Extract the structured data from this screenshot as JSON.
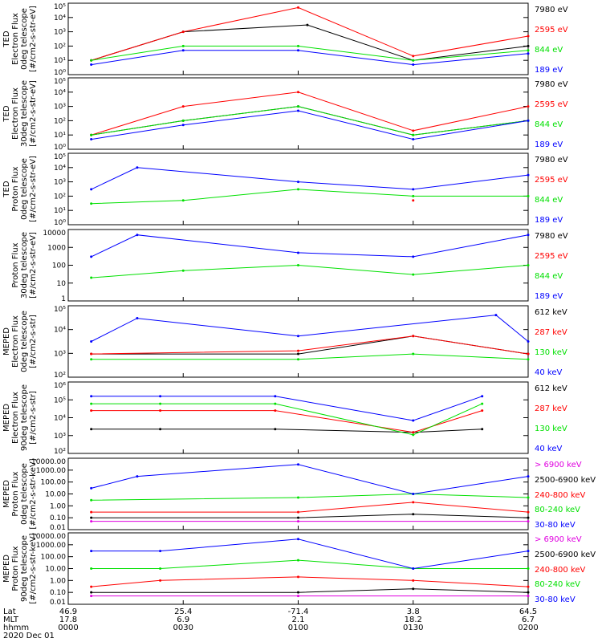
{
  "figure": {
    "date_label": "2020 Dec 01",
    "footer_row_labels": [
      "Lat",
      "MLT",
      "hhmm"
    ],
    "x_ticks": [
      {
        "lat": "46.9",
        "mlt": "17.8",
        "hhmm": "0000"
      },
      {
        "lat": "25.4",
        "mlt": "6.9",
        "hhmm": "0030"
      },
      {
        "lat": "-71.4",
        "mlt": "2.1",
        "hhmm": "0100"
      },
      {
        "lat": "3.8",
        "mlt": "18.2",
        "hhmm": "0130"
      },
      {
        "lat": "64.5",
        "mlt": "6.7",
        "hhmm": "0200"
      }
    ],
    "colors": {
      "black": "#000000",
      "red": "#ff0000",
      "green": "#00e000",
      "blue": "#0000ff",
      "magenta": "#e000e0"
    }
  },
  "chart_data": [
    {
      "type": "line",
      "scale": "log",
      "ylim": [
        1,
        100000
      ],
      "yticks": [
        "10⁰",
        "10¹",
        "10²",
        "10³",
        "10⁴",
        "10⁵"
      ],
      "ylabel": [
        "TED",
        "Electron Flux",
        "0deg telescope",
        "[#/cm2-s-str-eV]"
      ],
      "series": [
        {
          "name": "7980 eV",
          "color": "#000000",
          "x": [
            0.05,
            0.25,
            0.52,
            0.75,
            1.0
          ],
          "y": [
            10,
            1000,
            3000,
            10,
            100
          ]
        },
        {
          "name": "2595 eV",
          "color": "#ff0000",
          "x": [
            0.05,
            0.25,
            0.5,
            0.75,
            1.0
          ],
          "y": [
            10,
            1000,
            50000,
            20,
            500
          ]
        },
        {
          "name": "844 eV",
          "color": "#00e000",
          "x": [
            0.05,
            0.25,
            0.5,
            0.75,
            1.0
          ],
          "y": [
            10,
            100,
            100,
            10,
            50
          ]
        },
        {
          "name": "189 eV",
          "color": "#0000ff",
          "x": [
            0.05,
            0.25,
            0.5,
            0.75,
            1.0
          ],
          "y": [
            5,
            50,
            50,
            5,
            30
          ]
        }
      ]
    },
    {
      "type": "line",
      "scale": "log",
      "ylim": [
        1,
        100000
      ],
      "yticks": [
        "10⁰",
        "10¹",
        "10²",
        "10³",
        "10⁴",
        "10⁵"
      ],
      "ylabel": [
        "TED",
        "Electron Flux",
        "30deg telescope",
        "[#/cm2-s-str-eV]"
      ],
      "series": [
        {
          "name": "7980 eV",
          "color": "#000000",
          "x": [
            0.05,
            0.25,
            0.5,
            0.75,
            1.0
          ],
          "y": [
            10,
            100,
            1000,
            10,
            100
          ]
        },
        {
          "name": "2595 eV",
          "color": "#ff0000",
          "x": [
            0.05,
            0.25,
            0.5,
            0.75,
            1.0
          ],
          "y": [
            10,
            1000,
            10000,
            20,
            1000
          ]
        },
        {
          "name": "844 eV",
          "color": "#00e000",
          "x": [
            0.05,
            0.25,
            0.5,
            0.75,
            1.0
          ],
          "y": [
            10,
            100,
            1000,
            10,
            100
          ]
        },
        {
          "name": "189 eV",
          "color": "#0000ff",
          "x": [
            0.05,
            0.25,
            0.5,
            0.75,
            1.0
          ],
          "y": [
            5,
            50,
            500,
            5,
            100
          ]
        }
      ]
    },
    {
      "type": "line",
      "scale": "log",
      "ylim": [
        1,
        100000
      ],
      "yticks": [
        "10⁰",
        "10¹",
        "10²",
        "10³",
        "10⁴",
        "10⁵"
      ],
      "ylabel": [
        "TED",
        "Proton Flux",
        "0deg telescope",
        "[#/cm2-s-str-eV]"
      ],
      "series": [
        {
          "name": "7980 eV",
          "color": "#000000",
          "x": [],
          "y": []
        },
        {
          "name": "2595 eV",
          "color": "#ff0000",
          "x": [
            0.75
          ],
          "y": [
            50
          ]
        },
        {
          "name": "844 eV",
          "color": "#00e000",
          "x": [
            0.05,
            0.25,
            0.5,
            0.75,
            1.0
          ],
          "y": [
            30,
            50,
            300,
            100,
            100
          ]
        },
        {
          "name": "189 eV",
          "color": "#0000ff",
          "x": [
            0.05,
            0.15,
            0.5,
            0.75,
            1.0
          ],
          "y": [
            300,
            10000,
            1000,
            300,
            3000
          ]
        }
      ]
    },
    {
      "type": "line",
      "scale": "log",
      "ylim": [
        1,
        10000
      ],
      "yticks": [
        "1",
        "10",
        "100",
        "1000",
        "10000"
      ],
      "ylabel": [
        "Proton Flux",
        "30deg telescope",
        "[#/cm2-s-str-eV]"
      ],
      "series": [
        {
          "name": "7980 eV",
          "color": "#000000",
          "x": [],
          "y": []
        },
        {
          "name": "2595 eV",
          "color": "#ff0000",
          "x": [],
          "y": []
        },
        {
          "name": "844 eV",
          "color": "#00e000",
          "x": [
            0.05,
            0.25,
            0.5,
            0.75,
            1.0
          ],
          "y": [
            20,
            50,
            100,
            30,
            100
          ]
        },
        {
          "name": "189 eV",
          "color": "#0000ff",
          "x": [
            0.05,
            0.15,
            0.5,
            0.75,
            1.0
          ],
          "y": [
            300,
            5000,
            500,
            300,
            5000
          ]
        }
      ]
    },
    {
      "type": "line",
      "scale": "log",
      "ylim": [
        10,
        100000
      ],
      "yticks": [
        "10²",
        "10³",
        "10⁴",
        "10⁵"
      ],
      "ylabel": [
        "MEPED",
        "Electron Flux",
        "0deg telescope",
        "[#/cm2-s-str]"
      ],
      "series": [
        {
          "name": "612 keV",
          "color": "#000000",
          "x": [
            0.05,
            0.5,
            0.75,
            1.0
          ],
          "y": [
            200,
            200,
            2000,
            200
          ]
        },
        {
          "name": "287 keV",
          "color": "#ff0000",
          "x": [
            0.05,
            0.5,
            0.75,
            1.0
          ],
          "y": [
            200,
            300,
            2000,
            200
          ]
        },
        {
          "name": "130 keV",
          "color": "#00e000",
          "x": [
            0.05,
            0.5,
            0.75,
            1.0
          ],
          "y": [
            100,
            100,
            200,
            100
          ]
        },
        {
          "name": "40 keV",
          "color": "#0000ff",
          "x": [
            0.05,
            0.15,
            0.5,
            0.93,
            1.0
          ],
          "y": [
            1000,
            20000,
            2000,
            30000,
            1000
          ]
        }
      ]
    },
    {
      "type": "line",
      "scale": "log",
      "ylim": [
        10,
        1000000
      ],
      "yticks": [
        "10²",
        "10³",
        "10⁴",
        "10⁵",
        "10⁶"
      ],
      "ylabel": [
        "MEPED",
        "Electron Flux",
        "90deg telescope",
        "[#/cm2-s-str]"
      ],
      "series": [
        {
          "name": "612 keV",
          "color": "#000000",
          "x": [
            0.05,
            0.2,
            0.45,
            0.75,
            0.9
          ],
          "y": [
            500,
            500,
            500,
            300,
            500
          ]
        },
        {
          "name": "287 keV",
          "color": "#ff0000",
          "x": [
            0.05,
            0.2,
            0.45,
            0.75,
            0.9
          ],
          "y": [
            10000,
            10000,
            10000,
            300,
            10000
          ]
        },
        {
          "name": "130 keV",
          "color": "#00e000",
          "x": [
            0.05,
            0.2,
            0.45,
            0.75,
            0.9
          ],
          "y": [
            30000,
            30000,
            30000,
            200,
            30000
          ]
        },
        {
          "name": "40 keV",
          "color": "#0000ff",
          "x": [
            0.05,
            0.2,
            0.45,
            0.75,
            0.9
          ],
          "y": [
            100000,
            100000,
            100000,
            2000,
            100000
          ]
        }
      ]
    },
    {
      "type": "line",
      "scale": "log",
      "ylim": [
        0.01,
        10000
      ],
      "yticks": [
        "0.01",
        "0.10",
        "1.00",
        "10.00",
        "100.00",
        "1000.00",
        "10000.00"
      ],
      "ylabel": [
        "MEPED",
        "Proton Flux",
        "0deg telescope",
        "[#/cm2-s-str-keV]"
      ],
      "series": [
        {
          "name": "> 6900 keV",
          "color": "#e000e0",
          "x": [
            0.05,
            0.5,
            1.0
          ],
          "y": [
            0.05,
            0.05,
            0.05
          ]
        },
        {
          "name": "2500-6900 keV",
          "color": "#000000",
          "x": [
            0.05,
            0.5,
            0.75,
            1.0
          ],
          "y": [
            0.1,
            0.1,
            0.2,
            0.1
          ]
        },
        {
          "name": "240-800 keV",
          "color": "#ff0000",
          "x": [
            0.05,
            0.5,
            0.75,
            1.0
          ],
          "y": [
            0.3,
            0.3,
            2,
            0.3
          ]
        },
        {
          "name": "80-240 keV",
          "color": "#00e000",
          "x": [
            0.05,
            0.5,
            0.75,
            1.0
          ],
          "y": [
            3,
            5,
            10,
            5
          ]
        },
        {
          "name": "30-80 keV",
          "color": "#0000ff",
          "x": [
            0.05,
            0.15,
            0.5,
            0.75,
            1.0
          ],
          "y": [
            30,
            300,
            3000,
            10,
            300
          ]
        }
      ]
    },
    {
      "type": "line",
      "scale": "log",
      "ylim": [
        0.01,
        10000
      ],
      "yticks": [
        "0.01",
        "0.10",
        "1.00",
        "10.00",
        "100.00",
        "1000.00",
        "10000.00"
      ],
      "ylabel": [
        "MEPED",
        "Proton Flux",
        "90deg telescope",
        "[#/cm2-s-str-keV]"
      ],
      "series": [
        {
          "name": "> 6900 keV",
          "color": "#e000e0",
          "x": [
            0.05,
            0.5,
            1.0
          ],
          "y": [
            0.05,
            0.05,
            0.05
          ]
        },
        {
          "name": "2500-6900 keV",
          "color": "#000000",
          "x": [
            0.05,
            0.5,
            0.75,
            1.0
          ],
          "y": [
            0.1,
            0.1,
            0.2,
            0.1
          ]
        },
        {
          "name": "240-800 keV",
          "color": "#ff0000",
          "x": [
            0.05,
            0.2,
            0.5,
            0.75,
            1.0
          ],
          "y": [
            0.3,
            1,
            2,
            1,
            0.3
          ]
        },
        {
          "name": "80-240 keV",
          "color": "#00e000",
          "x": [
            0.05,
            0.2,
            0.5,
            0.75,
            1.0
          ],
          "y": [
            10,
            10,
            50,
            10,
            10
          ]
        },
        {
          "name": "30-80 keV",
          "color": "#0000ff",
          "x": [
            0.05,
            0.2,
            0.5,
            0.75,
            1.0
          ],
          "y": [
            300,
            300,
            3000,
            10,
            300
          ]
        }
      ]
    }
  ]
}
